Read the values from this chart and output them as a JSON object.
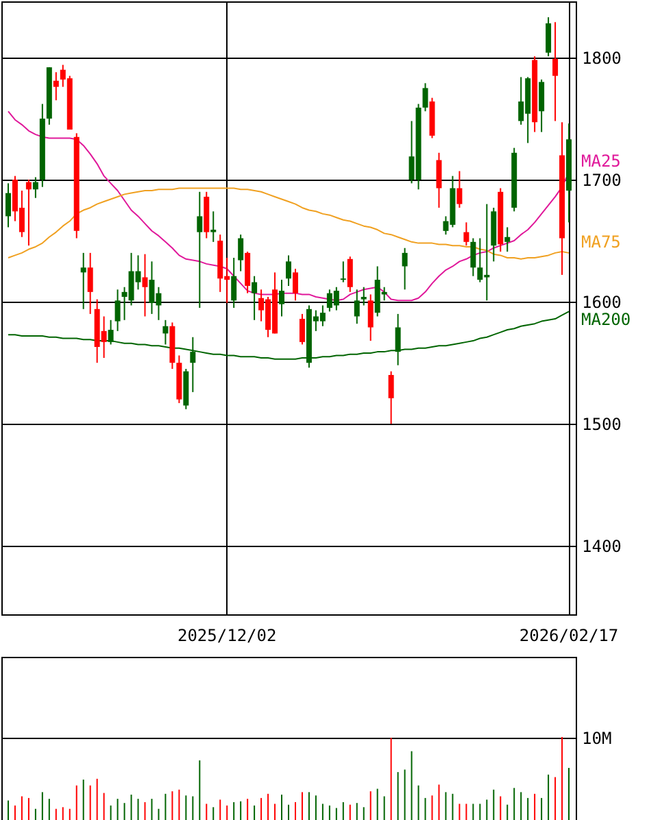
{
  "chart_data": [
    {
      "type": "candlestick",
      "categories": [
        null,
        null,
        null,
        null,
        null,
        null,
        null,
        null,
        null,
        null,
        null,
        null,
        null,
        null,
        null,
        null,
        null,
        null,
        null,
        null,
        null,
        null,
        null,
        null,
        null,
        null,
        null,
        null,
        null,
        null,
        null,
        null,
        "2025/12/02",
        null,
        null,
        null,
        null,
        null,
        null,
        null,
        null,
        null,
        null,
        null,
        null,
        null,
        null,
        null,
        null,
        null,
        null,
        null,
        null,
        null,
        null,
        null,
        null,
        null,
        null,
        null,
        null,
        null,
        null,
        null,
        null,
        null,
        null,
        null,
        null,
        null,
        null,
        null,
        null,
        null,
        null,
        null,
        null,
        null,
        null,
        null,
        null,
        null,
        "2026/02/17"
      ],
      "ohlc": [
        [
          1670,
          1697,
          1661,
          1689
        ],
        [
          1700,
          1703,
          1666,
          1674
        ],
        [
          1677,
          1691,
          1653,
          1657
        ],
        [
          1698,
          1700,
          1646,
          1692
        ],
        [
          1692,
          1702,
          1685,
          1698
        ],
        [
          1700,
          1762,
          1694,
          1750
        ],
        [
          1750,
          1792,
          1745,
          1792
        ],
        [
          1781,
          1788,
          1765,
          1776
        ],
        [
          1790,
          1794,
          1776,
          1782
        ],
        [
          1783,
          1785,
          1741,
          1741
        ],
        [
          1735,
          1738,
          1652,
          1658
        ],
        [
          1624,
          1640,
          1594,
          1628
        ],
        [
          1628,
          1640,
          1590,
          1608
        ],
        [
          1594,
          1602,
          1550,
          1563
        ],
        [
          1576,
          1588,
          1554,
          1567
        ],
        [
          1567,
          1585,
          1565,
          1577
        ],
        [
          1584,
          1610,
          1576,
          1601
        ],
        [
          1604,
          1612,
          1585,
          1608
        ],
        [
          1601,
          1640,
          1597,
          1625
        ],
        [
          1616,
          1638,
          1610,
          1625
        ],
        [
          1620,
          1639,
          1588,
          1612
        ],
        [
          1599,
          1633,
          1590,
          1618
        ],
        [
          1597,
          1612,
          1585,
          1607
        ],
        [
          1574,
          1585,
          1565,
          1580
        ],
        [
          1580,
          1583,
          1545,
          1550
        ],
        [
          1550,
          1556,
          1517,
          1520
        ],
        [
          1515,
          1545,
          1512,
          1543
        ],
        [
          1550,
          1571,
          1526,
          1559
        ],
        [
          1657,
          1690,
          1595,
          1670
        ],
        [
          1686,
          1690,
          1652,
          1657
        ],
        [
          1657,
          1674,
          1649,
          1659
        ],
        [
          1650,
          1655,
          1608,
          1619
        ],
        [
          1621,
          1636,
          1599,
          1618
        ],
        [
          1601,
          1636,
          1595,
          1621
        ],
        [
          1634,
          1655,
          1625,
          1652
        ],
        [
          1640,
          1641,
          1607,
          1613
        ],
        [
          1607,
          1621,
          1585,
          1616
        ],
        [
          1603,
          1610,
          1584,
          1593
        ],
        [
          1602,
          1604,
          1571,
          1577
        ],
        [
          1610,
          1624,
          1574,
          1574
        ],
        [
          1598,
          1618,
          1588,
          1609
        ],
        [
          1619,
          1638,
          1613,
          1633
        ],
        [
          1624,
          1627,
          1601,
          1607
        ],
        [
          1586,
          1590,
          1565,
          1567
        ],
        [
          1550,
          1597,
          1546,
          1594
        ],
        [
          1584,
          1593,
          1576,
          1588
        ],
        [
          1584,
          1597,
          1580,
          1591
        ],
        [
          1595,
          1610,
          1592,
          1607
        ],
        [
          1597,
          1612,
          1593,
          1609
        ],
        [
          1618,
          1633,
          1616,
          1619
        ],
        [
          1635,
          1637,
          1608,
          1612
        ],
        [
          1588,
          1610,
          1582,
          1601
        ],
        [
          1602,
          1612,
          1597,
          1604
        ],
        [
          1601,
          1606,
          1568,
          1579
        ],
        [
          1591,
          1629,
          1588,
          1618
        ],
        [
          1606,
          1612,
          1601,
          1608
        ],
        [
          1540,
          1543,
          1500,
          1521
        ],
        [
          1559,
          1590,
          1548,
          1579
        ],
        [
          1629,
          1644,
          1610,
          1640
        ],
        [
          1700,
          1748,
          1697,
          1719
        ],
        [
          1700,
          1762,
          1692,
          1759
        ],
        [
          1759,
          1779,
          1756,
          1775
        ],
        [
          1764,
          1767,
          1734,
          1736
        ],
        [
          1716,
          1722,
          1677,
          1693
        ],
        [
          1658,
          1670,
          1655,
          1666
        ],
        [
          1663,
          1703,
          1661,
          1693
        ],
        [
          1693,
          1707,
          1677,
          1680
        ],
        [
          1657,
          1665,
          1646,
          1649
        ],
        [
          1628,
          1652,
          1621,
          1649
        ],
        [
          1618,
          1652,
          1616,
          1628
        ],
        [
          1620,
          1680,
          1601,
          1622
        ],
        [
          1646,
          1677,
          1633,
          1674
        ],
        [
          1690,
          1693,
          1641,
          1647
        ],
        [
          1649,
          1661,
          1641,
          1653
        ],
        [
          1677,
          1726,
          1674,
          1722
        ],
        [
          1748,
          1784,
          1745,
          1764
        ],
        [
          1754,
          1784,
          1730,
          1783
        ],
        [
          1798,
          1801,
          1739,
          1747
        ],
        [
          1756,
          1782,
          1739,
          1780
        ],
        [
          1804,
          1833,
          1801,
          1828
        ],
        [
          1799,
          1829,
          1748,
          1785
        ],
        [
          1720,
          1747,
          1622,
          1652
        ],
        [
          1691,
          1746,
          1665,
          1733
        ]
      ],
      "colors": [
        "#006400",
        "#ff0000",
        "#ff0000",
        "#ff0000",
        "#006400",
        "#006400",
        "#006400",
        "#ff0000",
        "#ff0000",
        "#ff0000",
        "#ff0000",
        "#006400",
        "#ff0000",
        "#ff0000",
        "#ff0000",
        "#006400",
        "#006400",
        "#006400",
        "#006400",
        "#006400",
        "#ff0000",
        "#006400",
        "#006400",
        "#006400",
        "#ff0000",
        "#ff0000",
        "#006400",
        "#006400",
        "#006400",
        "#ff0000",
        "#006400",
        "#ff0000",
        "#ff0000",
        "#006400",
        "#006400",
        "#ff0000",
        "#006400",
        "#ff0000",
        "#ff0000",
        "#ff0000",
        "#006400",
        "#006400",
        "#ff0000",
        "#ff0000",
        "#006400",
        "#006400",
        "#006400",
        "#006400",
        "#006400",
        "#006400",
        "#ff0000",
        "#006400",
        "#006400",
        "#ff0000",
        "#006400",
        "#006400",
        "#ff0000",
        "#006400",
        "#006400",
        "#006400",
        "#006400",
        "#006400",
        "#ff0000",
        "#ff0000",
        "#006400",
        "#006400",
        "#ff0000",
        "#ff0000",
        "#006400",
        "#006400",
        "#006400",
        "#006400",
        "#ff0000",
        "#006400",
        "#006400",
        "#006400",
        "#006400",
        "#ff0000",
        "#006400",
        "#006400",
        "#ff0000",
        "#ff0000",
        "#006400"
      ],
      "series": [
        {
          "name": "MA25",
          "type": "line",
          "color": "#e0189a",
          "values": [
            1756,
            1749,
            1745,
            1740,
            1737,
            1735,
            1734,
            1734,
            1734,
            1734,
            1733,
            1728,
            1721,
            1713,
            1703,
            1697,
            1691,
            1683,
            1675,
            1670,
            1664,
            1658,
            1654,
            1649,
            1644,
            1638,
            1635,
            1634,
            1633,
            1631,
            1630,
            1629,
            1627,
            1621,
            1615,
            1609,
            1607,
            1606,
            1606,
            1606,
            1607,
            1607,
            1607,
            1606,
            1606,
            1604,
            1603,
            1602,
            1601,
            1602,
            1606,
            1608,
            1610,
            1611,
            1612,
            1608,
            1602,
            1601,
            1601,
            1601,
            1603,
            1608,
            1615,
            1621,
            1626,
            1629,
            1633,
            1635,
            1638,
            1640,
            1641,
            1644,
            1646,
            1648,
            1650,
            1655,
            1659,
            1665,
            1672,
            1679,
            1686,
            1694,
            1706
          ]
        },
        {
          "name": "MA75",
          "type": "line",
          "color": "#f0a020",
          "values": [
            1636,
            1638,
            1640,
            1643,
            1645,
            1648,
            1653,
            1657,
            1662,
            1666,
            1672,
            1675,
            1677,
            1680,
            1682,
            1684,
            1686,
            1688,
            1689,
            1690,
            1691,
            1691,
            1692,
            1692,
            1692,
            1693,
            1693,
            1693,
            1693,
            1693,
            1693,
            1693,
            1693,
            1693,
            1692,
            1692,
            1691,
            1690,
            1688,
            1686,
            1684,
            1682,
            1680,
            1677,
            1675,
            1674,
            1672,
            1671,
            1669,
            1667,
            1666,
            1664,
            1662,
            1661,
            1659,
            1656,
            1655,
            1653,
            1651,
            1649,
            1648,
            1648,
            1648,
            1647,
            1647,
            1646,
            1646,
            1645,
            1645,
            1643,
            1642,
            1639,
            1638,
            1636,
            1636,
            1635,
            1636,
            1636,
            1637,
            1638,
            1640,
            1641,
            1640
          ]
        },
        {
          "name": "MA200",
          "type": "line",
          "color": "#006400",
          "values": [
            1573,
            1573,
            1572,
            1572,
            1572,
            1572,
            1571,
            1571,
            1570,
            1570,
            1570,
            1569,
            1569,
            1568,
            1568,
            1568,
            1567,
            1566,
            1566,
            1565,
            1565,
            1564,
            1564,
            1563,
            1562,
            1562,
            1561,
            1560,
            1559,
            1558,
            1557,
            1557,
            1556,
            1556,
            1555,
            1555,
            1555,
            1554,
            1554,
            1553,
            1553,
            1553,
            1553,
            1554,
            1554,
            1554,
            1555,
            1555,
            1556,
            1556,
            1557,
            1557,
            1558,
            1558,
            1559,
            1559,
            1560,
            1560,
            1561,
            1561,
            1562,
            1562,
            1563,
            1564,
            1564,
            1565,
            1566,
            1567,
            1568,
            1570,
            1571,
            1573,
            1575,
            1577,
            1578,
            1580,
            1581,
            1582,
            1584,
            1585,
            1586,
            1589,
            1592
          ]
        }
      ],
      "ylim": [
        1344,
        1846
      ],
      "yticks": [
        1400,
        1500,
        1600,
        1700,
        1800
      ],
      "grid": true
    },
    {
      "type": "bar",
      "categories": [
        null,
        null,
        null,
        null,
        null,
        null,
        null,
        null,
        null,
        null,
        null,
        null,
        null,
        null,
        null,
        null,
        null,
        null,
        null,
        null,
        null,
        null,
        null,
        null,
        null,
        null,
        null,
        null,
        null,
        null,
        null,
        null,
        null,
        null,
        null,
        null,
        null,
        null,
        null,
        null,
        null,
        null,
        null,
        null,
        null,
        null,
        null,
        null,
        null,
        null,
        null,
        null,
        null,
        null,
        null,
        null,
        null,
        null,
        null,
        null,
        null,
        null,
        null,
        null,
        null,
        null,
        null,
        null,
        null,
        null,
        null,
        null,
        null,
        null,
        null,
        null,
        null,
        null,
        null,
        null,
        null,
        null,
        null
      ],
      "values": [
        2500000,
        1900000,
        3000000,
        2800000,
        1500000,
        3500000,
        2700000,
        1500000,
        1700000,
        1500000,
        4300000,
        5000000,
        4300000,
        5100000,
        3400000,
        1900000,
        2700000,
        2200000,
        3200000,
        2700000,
        2300000,
        2700000,
        1500000,
        3300000,
        3600000,
        3800000,
        3100000,
        3000000,
        7300000,
        2100000,
        1700000,
        2600000,
        1900000,
        2300000,
        2400000,
        2700000,
        1900000,
        2800000,
        3300000,
        2100000,
        3200000,
        2000000,
        2300000,
        3500000,
        3500000,
        3100000,
        2100000,
        1900000,
        1600000,
        2300000,
        2000000,
        2200000,
        1700000,
        3600000,
        3900000,
        3000000,
        10000000,
        5900000,
        6200000,
        8400000,
        4300000,
        2800000,
        3100000,
        4400000,
        3500000,
        3300000,
        2100000,
        2100000,
        2100000,
        2100000,
        2600000,
        3800000,
        3000000,
        2000000,
        4000000,
        3500000,
        2800000,
        3300000,
        2800000,
        5600000,
        5300000,
        10100000,
        6400000
      ],
      "colors": [
        "#006400",
        "#ff0000",
        "#ff0000",
        "#ff0000",
        "#006400",
        "#006400",
        "#006400",
        "#ff0000",
        "#ff0000",
        "#ff0000",
        "#ff0000",
        "#006400",
        "#ff0000",
        "#ff0000",
        "#ff0000",
        "#006400",
        "#006400",
        "#006400",
        "#006400",
        "#006400",
        "#ff0000",
        "#006400",
        "#006400",
        "#006400",
        "#ff0000",
        "#ff0000",
        "#006400",
        "#006400",
        "#006400",
        "#ff0000",
        "#006400",
        "#ff0000",
        "#ff0000",
        "#006400",
        "#006400",
        "#ff0000",
        "#006400",
        "#ff0000",
        "#ff0000",
        "#ff0000",
        "#006400",
        "#006400",
        "#ff0000",
        "#ff0000",
        "#006400",
        "#006400",
        "#006400",
        "#006400",
        "#006400",
        "#006400",
        "#ff0000",
        "#006400",
        "#006400",
        "#ff0000",
        "#006400",
        "#006400",
        "#ff0000",
        "#006400",
        "#006400",
        "#006400",
        "#006400",
        "#006400",
        "#ff0000",
        "#ff0000",
        "#006400",
        "#006400",
        "#ff0000",
        "#ff0000",
        "#006400",
        "#006400",
        "#006400",
        "#006400",
        "#ff0000",
        "#006400",
        "#006400",
        "#006400",
        "#006400",
        "#ff0000",
        "#006400",
        "#006400",
        "#ff0000",
        "#ff0000",
        "#006400"
      ],
      "ylim": [
        0,
        19700000
      ],
      "yticks": [
        {
          "value": 10000000,
          "label": "10M"
        }
      ],
      "grid": "y",
      "tick_labels": "y"
    }
  ]
}
